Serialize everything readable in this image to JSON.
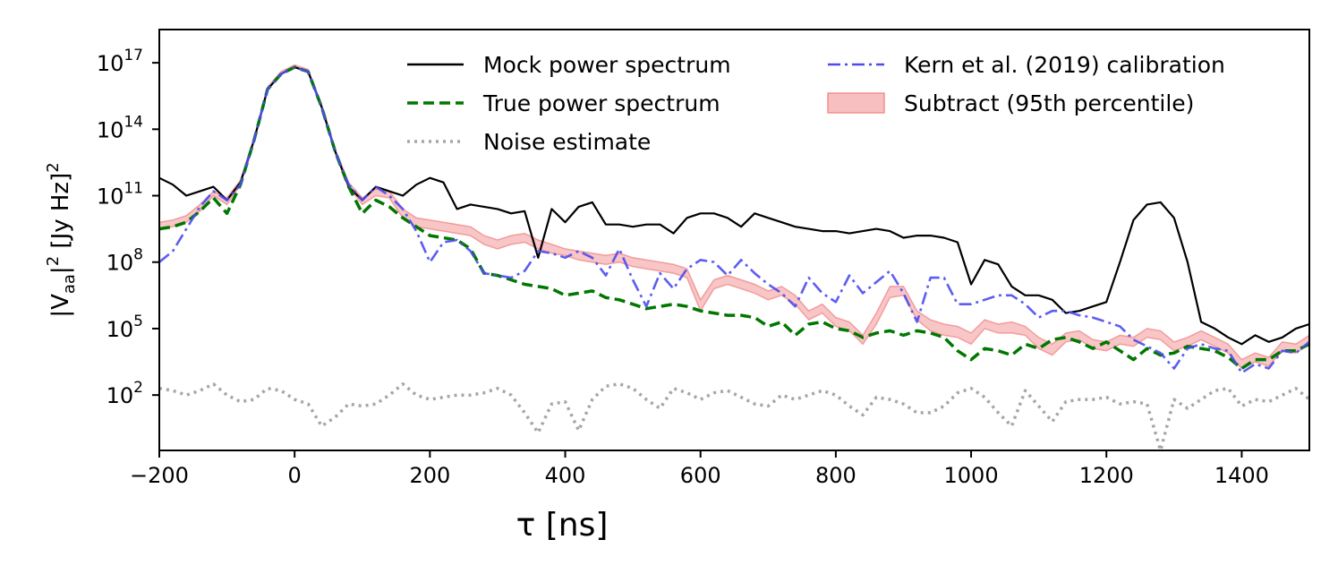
{
  "chart_data": {
    "type": "line",
    "xlabel": "τ [ns]",
    "ylabel_parts": {
      "pre": "|V",
      "sub": "aa",
      "mid": "|",
      "sup1": "2",
      "post": " [Jy Hz]",
      "sup2": "2"
    },
    "xlim": [
      -200,
      1500
    ],
    "ylim_log10": [
      -0.5,
      18.5
    ],
    "yscale": "log",
    "legend_position": "top",
    "x_ticks": [
      -200,
      0,
      200,
      400,
      600,
      800,
      1000,
      1200,
      1400
    ],
    "x_tick_labels": [
      "−200",
      "0",
      "200",
      "400",
      "600",
      "800",
      "1000",
      "1200",
      "1400"
    ],
    "y_ticks": [
      {
        "base": "10",
        "exp": "2",
        "log10": 2
      },
      {
        "base": "10",
        "exp": "5",
        "log10": 5
      },
      {
        "base": "10",
        "exp": "8",
        "log10": 8
      },
      {
        "base": "10",
        "exp": "11",
        "log10": 11
      },
      {
        "base": "10",
        "exp": "14",
        "log10": 14
      },
      {
        "base": "10",
        "exp": "17",
        "log10": 17
      }
    ],
    "x": [
      -200,
      -180,
      -160,
      -140,
      -120,
      -100,
      -80,
      -60,
      -40,
      -20,
      0,
      20,
      40,
      60,
      80,
      100,
      120,
      140,
      160,
      180,
      200,
      220,
      240,
      260,
      280,
      300,
      320,
      340,
      360,
      380,
      400,
      420,
      440,
      460,
      480,
      500,
      520,
      540,
      560,
      580,
      600,
      620,
      640,
      660,
      680,
      700,
      720,
      740,
      760,
      780,
      800,
      820,
      840,
      860,
      880,
      900,
      920,
      940,
      960,
      980,
      1000,
      1020,
      1040,
      1060,
      1080,
      1100,
      1120,
      1140,
      1160,
      1180,
      1200,
      1220,
      1240,
      1260,
      1280,
      1300,
      1320,
      1340,
      1360,
      1380,
      1400,
      1420,
      1440,
      1460,
      1480,
      1500
    ],
    "series": [
      {
        "name": "Mock power spectrum",
        "color": "#000000",
        "dash": "solid",
        "log10_values": [
          11.8,
          11.5,
          11.0,
          11.2,
          11.4,
          10.8,
          11.6,
          13.5,
          15.8,
          16.5,
          16.8,
          16.6,
          15.0,
          13.0,
          11.4,
          10.8,
          11.4,
          11.2,
          11.0,
          11.5,
          11.8,
          11.6,
          10.4,
          10.6,
          10.5,
          10.4,
          10.2,
          10.3,
          8.2,
          10.4,
          9.8,
          10.5,
          10.7,
          9.7,
          9.7,
          9.6,
          9.7,
          9.7,
          9.3,
          10.0,
          10.2,
          10.2,
          10.0,
          9.6,
          10.2,
          10.0,
          9.8,
          9.6,
          9.5,
          9.4,
          9.4,
          9.3,
          9.4,
          9.5,
          9.4,
          9.1,
          9.2,
          9.2,
          9.1,
          8.9,
          7.0,
          8.1,
          7.9,
          6.9,
          6.5,
          6.5,
          6.3,
          5.7,
          5.8,
          6.0,
          6.2,
          8.0,
          9.9,
          10.6,
          10.7,
          10.0,
          8.0,
          5.3,
          5.0,
          4.6,
          4.3,
          4.7,
          4.4,
          4.6,
          5.0,
          5.2
        ]
      },
      {
        "name": "True power spectrum",
        "color": "#007700",
        "dash": "dashed",
        "log10_values": [
          9.5,
          9.6,
          9.8,
          10.3,
          10.9,
          10.2,
          11.5,
          13.5,
          15.8,
          16.5,
          16.8,
          16.6,
          15.0,
          13.0,
          11.4,
          10.2,
          10.8,
          10.5,
          10.0,
          9.6,
          9.2,
          9.1,
          9.0,
          8.6,
          7.5,
          7.4,
          7.2,
          7.0,
          6.9,
          6.8,
          6.5,
          6.6,
          6.7,
          6.4,
          6.3,
          6.1,
          5.9,
          6.0,
          6.1,
          6.0,
          5.8,
          5.7,
          5.6,
          5.6,
          5.5,
          5.1,
          5.3,
          4.7,
          5.2,
          5.3,
          5.0,
          4.9,
          4.6,
          4.8,
          4.9,
          4.7,
          4.9,
          4.8,
          4.6,
          4.0,
          3.6,
          4.1,
          4.0,
          3.8,
          4.3,
          4.1,
          4.5,
          4.6,
          4.4,
          4.1,
          4.4,
          4.0,
          3.6,
          4.1,
          3.8,
          3.9,
          4.2,
          4.1,
          4.0,
          3.7,
          3.2,
          3.6,
          3.6,
          4.0,
          4.0,
          4.3
        ]
      },
      {
        "name": "Noise estimate",
        "color": "#a6a6a6",
        "dash": "dotted",
        "log10_values": [
          2.3,
          2.2,
          2.0,
          2.2,
          2.5,
          2.0,
          1.7,
          1.8,
          2.3,
          2.2,
          1.8,
          1.6,
          0.6,
          1.0,
          1.6,
          1.5,
          1.6,
          2.0,
          2.5,
          2.0,
          1.8,
          1.9,
          2.0,
          2.0,
          2.1,
          2.3,
          2.0,
          1.2,
          0.3,
          1.6,
          1.7,
          0.4,
          1.8,
          2.4,
          2.5,
          2.3,
          1.8,
          1.4,
          2.3,
          2.1,
          1.8,
          2.1,
          2.2,
          1.9,
          1.6,
          1.5,
          2.0,
          1.8,
          2.0,
          2.2,
          2.0,
          1.5,
          1.1,
          1.9,
          1.8,
          1.6,
          1.2,
          1.2,
          1.5,
          2.1,
          2.3,
          1.9,
          1.2,
          0.6,
          2.2,
          1.5,
          0.8,
          1.7,
          1.8,
          1.8,
          1.9,
          1.6,
          1.7,
          1.6,
          -0.5,
          1.8,
          1.4,
          1.8,
          2.2,
          2.3,
          1.5,
          1.8,
          1.7,
          2.0,
          2.3,
          1.8
        ]
      },
      {
        "name": "Kern et al. (2019) calibration",
        "color": "#4b4bf0",
        "dash": "dashdot",
        "log10_values": [
          8.0,
          8.5,
          9.5,
          10.5,
          11.2,
          10.8,
          11.5,
          13.5,
          15.8,
          16.5,
          16.8,
          16.6,
          15.0,
          13.0,
          11.5,
          10.8,
          11.4,
          11.0,
          10.4,
          9.4,
          8.0,
          8.9,
          9.0,
          8.5,
          7.5,
          7.4,
          7.3,
          7.6,
          8.5,
          8.4,
          8.2,
          8.5,
          8.2,
          7.4,
          8.6,
          7.2,
          6.0,
          7.5,
          6.8,
          7.7,
          8.1,
          8.0,
          7.4,
          8.1,
          7.5,
          7.0,
          6.6,
          6.0,
          7.3,
          6.6,
          6.2,
          7.4,
          6.6,
          7.1,
          7.6,
          6.6,
          5.3,
          7.3,
          7.3,
          6.1,
          6.1,
          6.3,
          6.5,
          6.5,
          6.1,
          5.5,
          5.8,
          5.8,
          5.6,
          5.5,
          5.3,
          5.1,
          4.5,
          4.2,
          3.9,
          3.2,
          4.1,
          4.3,
          4.1,
          4.0,
          3.0,
          3.4,
          3.2,
          4.0,
          3.9,
          4.4
        ]
      }
    ],
    "band": {
      "name": "Subtract (95th percentile)",
      "color": "#f08080",
      "log10_low": [
        9.5,
        9.6,
        9.8,
        10.3,
        11.0,
        10.6,
        11.5,
        13.5,
        15.8,
        16.5,
        16.8,
        16.6,
        15.0,
        13.0,
        11.4,
        10.6,
        11.0,
        10.9,
        10.0,
        9.6,
        9.5,
        9.4,
        9.3,
        9.2,
        8.8,
        8.6,
        8.8,
        8.9,
        8.6,
        8.4,
        8.3,
        8.1,
        8.0,
        7.9,
        8.0,
        7.8,
        7.7,
        7.6,
        7.5,
        7.3,
        5.8,
        6.8,
        7.0,
        6.8,
        6.6,
        6.3,
        6.5,
        6.1,
        5.4,
        5.7,
        5.1,
        4.9,
        4.3,
        5.2,
        6.4,
        6.5,
        5.4,
        4.9,
        4.7,
        4.6,
        4.3,
        5.0,
        4.8,
        4.8,
        4.7,
        4.1,
        3.8,
        4.4,
        4.5,
        4.1,
        4.0,
        4.3,
        4.2,
        4.6,
        4.5,
        4.0,
        4.2,
        4.5,
        4.2,
        3.9,
        3.2,
        3.5,
        3.3,
        4.0,
        3.9,
        4.3
      ],
      "log10_high": [
        9.8,
        9.9,
        10.1,
        10.6,
        11.2,
        10.9,
        11.7,
        13.6,
        15.9,
        16.6,
        16.9,
        16.7,
        15.1,
        13.1,
        11.6,
        10.9,
        11.3,
        11.2,
        10.4,
        10.0,
        9.9,
        9.8,
        9.7,
        9.6,
        9.2,
        9.0,
        9.2,
        9.3,
        9.0,
        8.8,
        8.6,
        8.5,
        8.4,
        8.3,
        8.4,
        8.2,
        8.1,
        8.0,
        7.9,
        7.7,
        6.3,
        7.2,
        7.4,
        7.2,
        7.0,
        6.7,
        6.9,
        6.5,
        5.8,
        6.1,
        5.5,
        5.3,
        4.7,
        5.7,
        6.9,
        6.9,
        5.8,
        5.4,
        5.2,
        5.1,
        4.8,
        5.4,
        5.2,
        5.3,
        5.1,
        4.6,
        4.3,
        4.8,
        4.9,
        4.5,
        4.4,
        4.7,
        4.6,
        5.0,
        4.9,
        4.4,
        4.6,
        4.9,
        4.6,
        4.3,
        3.6,
        3.9,
        3.7,
        4.4,
        4.3,
        4.7
      ]
    }
  }
}
